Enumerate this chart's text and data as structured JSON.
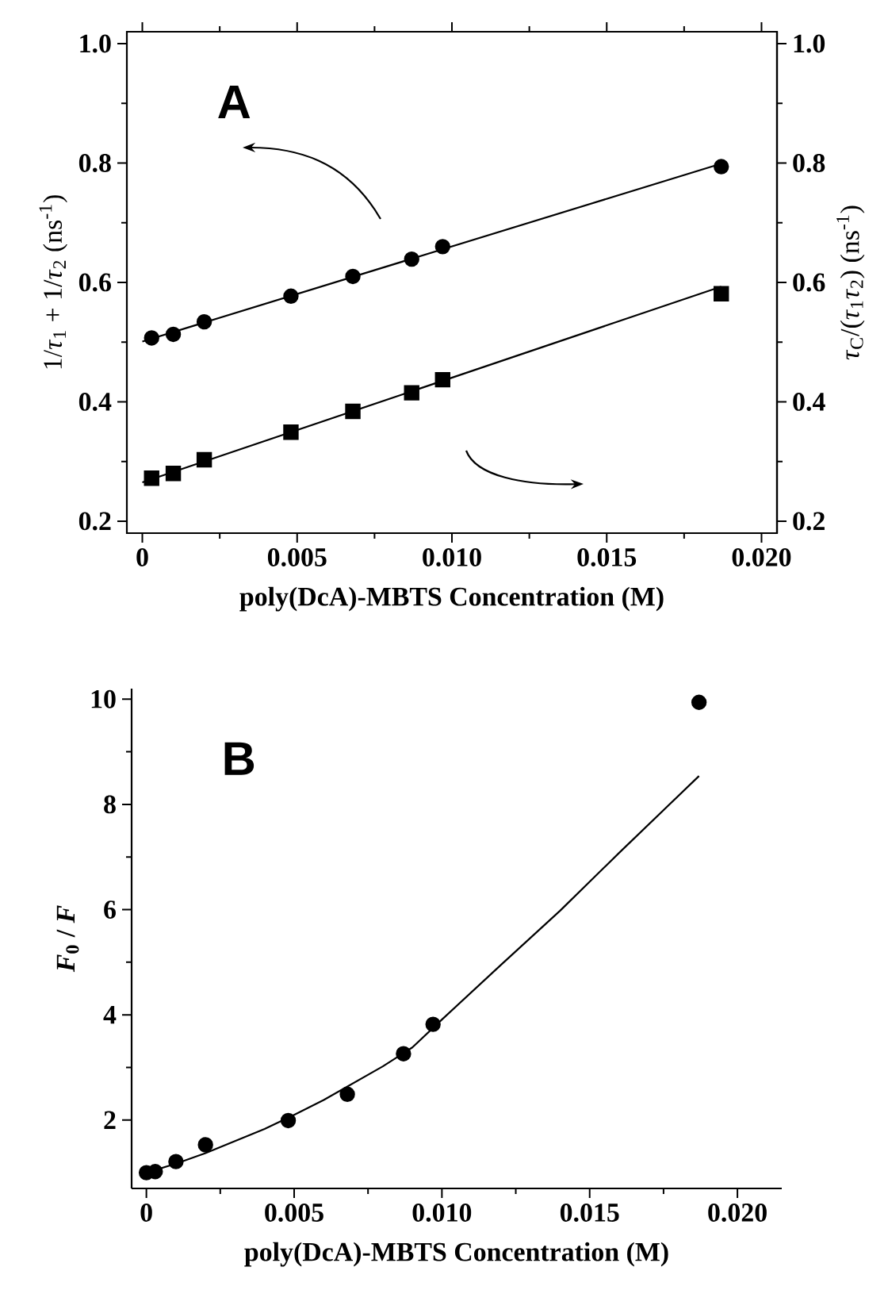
{
  "chart_data": [
    {
      "type": "scatter",
      "xlabel": "poly(DcA)-MBTS Concentration (M)",
      "ylabel": "1/*τ*$_{1}$ + 1/*τ*$_{2}$  (ns$^{-1}$)",
      "y2label": "*τ*$_{C}$/(*τ*$_{1}$*τ*$_{2}$)  (ns$^{-1}$)",
      "xlim": [
        -0.0005,
        0.0205
      ],
      "ylim": [
        0.18,
        1.02
      ],
      "y2lim": [
        0.18,
        1.02
      ],
      "xticks": [
        {
          "value": 0,
          "label": "0"
        },
        {
          "value": 0.005,
          "label": "0.005"
        },
        {
          "value": 0.01,
          "label": "0.010"
        },
        {
          "value": 0.015,
          "label": "0.015"
        },
        {
          "value": 0.02,
          "label": "0.020"
        }
      ],
      "yticks": [
        {
          "value": 0.2,
          "label": "0.2"
        },
        {
          "value": 0.4,
          "label": "0.4"
        },
        {
          "value": 0.6,
          "label": "0.6"
        },
        {
          "value": 0.8,
          "label": "0.8"
        },
        {
          "value": 1.0,
          "label": "1.0"
        }
      ],
      "y2ticks": [
        {
          "value": 0.2,
          "label": "0.2"
        },
        {
          "value": 0.4,
          "label": "0.4"
        },
        {
          "value": 0.6,
          "label": "0.6"
        },
        {
          "value": 0.8,
          "label": "0.8"
        },
        {
          "value": 1.0,
          "label": "1.0"
        }
      ],
      "x": [
        0.0003,
        0.001,
        0.002,
        0.0048,
        0.0068,
        0.0087,
        0.0097,
        0.0187
      ],
      "annotations": [
        "A"
      ],
      "series": [
        {
          "marker": "circle",
          "color": "#000000",
          "values": [
            0.507,
            0.513,
            0.534,
            0.577,
            0.61,
            0.639,
            0.66,
            0.794
          ]
        },
        {
          "type": "line",
          "marker": "none",
          "color": "#000000",
          "x": [
            0,
            0.0187
          ],
          "values": [
            0.501,
            0.799
          ]
        },
        {
          "marker": "square",
          "axis": "y2",
          "color": "#000000",
          "values": [
            0.272,
            0.28,
            0.303,
            0.349,
            0.384,
            0.415,
            0.437,
            0.581
          ]
        },
        {
          "type": "line",
          "marker": "none",
          "axis": "y2",
          "color": "#000000",
          "x": [
            0,
            0.0187
          ],
          "values": [
            0.265,
            0.593
          ]
        }
      ]
    },
    {
      "type": "scatter",
      "xlabel": "poly(DcA)-MBTS Concentration (M)",
      "ylabel": "*F*$_{0}$ / *F*",
      "xlim": [
        -0.0005,
        0.0215
      ],
      "ylim": [
        0.7,
        10.2
      ],
      "xticks": [
        {
          "value": 0,
          "label": "0"
        },
        {
          "value": 0.005,
          "label": "0.005"
        },
        {
          "value": 0.01,
          "label": "0.010"
        },
        {
          "value": 0.015,
          "label": "0.015"
        },
        {
          "value": 0.02,
          "label": "0.020"
        }
      ],
      "yticks": [
        2,
        4,
        6,
        8,
        10
      ],
      "x": [
        0,
        0.0003,
        0.001,
        0.002,
        0.0048,
        0.0068,
        0.0087,
        0.0097,
        0.0187
      ],
      "annotations": [
        "B"
      ],
      "series": [
        {
          "marker": "circle",
          "color": "#000000",
          "values": [
            1.0,
            1.02,
            1.21,
            1.53,
            1.99,
            2.49,
            3.26,
            3.82,
            9.94
          ]
        },
        {
          "type": "line",
          "marker": "none",
          "color": "#000000",
          "x": [
            0,
            0.001,
            0.002,
            0.003,
            0.004,
            0.005,
            0.006,
            0.007,
            0.008,
            0.009,
            0.01,
            0.012,
            0.014,
            0.016,
            0.0187
          ],
          "values": [
            1.0,
            1.17,
            1.37,
            1.6,
            1.83,
            2.1,
            2.38,
            2.7,
            3.02,
            3.38,
            3.91,
            4.95,
            5.98,
            7.08,
            8.54
          ]
        }
      ]
    }
  ]
}
